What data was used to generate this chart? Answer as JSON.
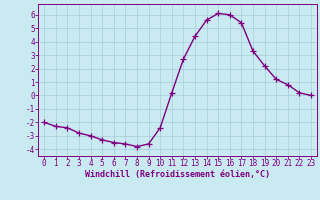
{
  "x": [
    0,
    1,
    2,
    3,
    4,
    5,
    6,
    7,
    8,
    9,
    10,
    11,
    12,
    13,
    14,
    15,
    16,
    17,
    18,
    19,
    20,
    21,
    22,
    23
  ],
  "y": [
    -2.0,
    -2.3,
    -2.4,
    -2.8,
    -3.0,
    -3.3,
    -3.5,
    -3.6,
    -3.8,
    -3.6,
    -2.4,
    0.2,
    2.7,
    4.4,
    5.6,
    6.1,
    6.0,
    5.4,
    3.3,
    2.2,
    1.2,
    0.8,
    0.2,
    0.0
  ],
  "line_color": "#800080",
  "marker": "+",
  "marker_size": 4,
  "bg_color": "#c8eaf0",
  "grid_color": "#a8ccd8",
  "xlabel": "Windchill (Refroidissement éolien,°C)",
  "xlabel_color": "#800080",
  "tick_color": "#800080",
  "spine_color": "#800080",
  "ylim": [
    -4.5,
    6.8
  ],
  "xlim": [
    -0.5,
    23.5
  ],
  "yticks": [
    -4,
    -3,
    -2,
    -1,
    0,
    1,
    2,
    3,
    4,
    5,
    6
  ],
  "xticks": [
    0,
    1,
    2,
    3,
    4,
    5,
    6,
    7,
    8,
    9,
    10,
    11,
    12,
    13,
    14,
    15,
    16,
    17,
    18,
    19,
    20,
    21,
    22,
    23
  ],
  "line_width": 1.0,
  "fig_bg": "#c8eaf0",
  "tick_fontsize": 5.5,
  "xlabel_fontsize": 6.0
}
